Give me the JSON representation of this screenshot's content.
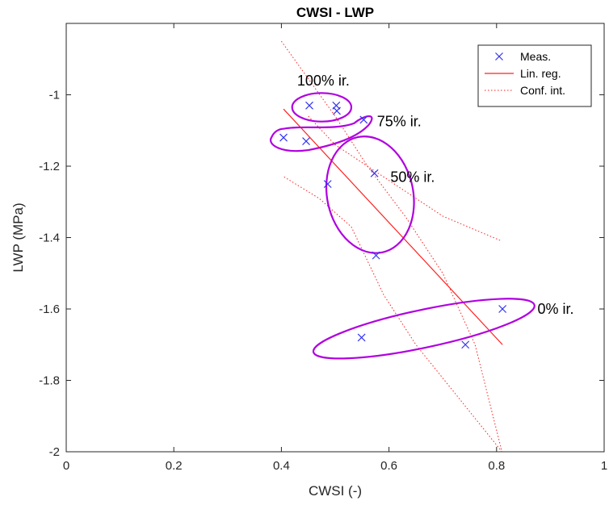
{
  "chart_data": {
    "type": "scatter",
    "title": "CWSI - LWP",
    "xlabel": "CWSI (-)",
    "ylabel": "LWP (MPa)",
    "xlim": [
      0,
      1
    ],
    "ylim": [
      -2,
      -0.8
    ],
    "xticks": [
      0,
      0.2,
      0.4,
      0.6,
      0.8,
      1
    ],
    "xtick_labels": [
      "0",
      "0.2",
      "0.4",
      "0.6",
      "0.8",
      "1"
    ],
    "yticks": [
      -2,
      -1.8,
      -1.6,
      -1.4,
      -1.2,
      -1
    ],
    "ytick_labels": [
      "-2",
      "-1.8",
      "-1.6",
      "-1.4",
      "-1.2",
      "-1"
    ],
    "grid": false,
    "legend_position": "top-right",
    "series": [
      {
        "name": "Meas.",
        "marker": "x",
        "color": "#3333ee",
        "x": [
          0.452,
          0.502,
          0.503,
          0.553,
          0.404,
          0.446,
          0.486,
          0.573,
          0.576,
          0.549,
          0.742,
          0.811
        ],
        "y": [
          -1.03,
          -1.03,
          -1.045,
          -1.07,
          -1.12,
          -1.13,
          -1.25,
          -1.22,
          -1.45,
          -1.68,
          -1.7,
          -1.6
        ]
      },
      {
        "name": "Lin. reg.",
        "style": "solid",
        "color": "#ff2020",
        "x": [
          0.404,
          0.811
        ],
        "y": [
          -1.04,
          -1.7
        ]
      },
      {
        "name": "Conf. int.",
        "style": "dotted",
        "color": "#ff2020",
        "segments": [
          {
            "x": [
              0.4,
              0.5,
              0.56,
              0.63,
              0.7,
              0.76,
              0.81
            ],
            "y": [
              -0.85,
              -1.06,
              -1.2,
              -1.34,
              -1.5,
              -1.7,
              -2.0
            ]
          },
          {
            "x": [
              0.405,
              0.47,
              0.53,
              0.59,
              0.65,
              0.73,
              0.81
            ],
            "y": [
              -1.23,
              -1.29,
              -1.37,
              -1.56,
              -1.7,
              -1.85,
              -2.0
            ]
          },
          {
            "x": [
              0.45,
              0.5,
              0.55,
              0.62,
              0.7,
              0.81
            ],
            "y": [
              -1.06,
              -1.14,
              -1.19,
              -1.26,
              -1.34,
              -1.41
            ]
          }
        ]
      }
    ],
    "annotations": [
      {
        "text": "100% ir.",
        "x": 0.478,
        "y": -0.96
      },
      {
        "text": "75% ir.",
        "x": 0.619,
        "y": -1.075
      },
      {
        "text": "50% ir.",
        "x": 0.644,
        "y": -1.23
      },
      {
        "text": "0% ir.",
        "x": 0.91,
        "y": -1.6
      }
    ],
    "groups": [
      {
        "cx": 0.475,
        "cy": -1.035,
        "rx": 0.055,
        "ry": 0.04,
        "rotation": 0,
        "color": "#b000e0"
      },
      {
        "cx": 0.565,
        "cy": -1.28,
        "rx": 0.08,
        "ry": 0.165,
        "rotation": -12,
        "color": "#b000e0"
      },
      {
        "cx": 0.665,
        "cy": -1.655,
        "rx": 0.21,
        "ry": 0.053,
        "rotation": -12,
        "color": "#b000e0"
      }
    ]
  }
}
